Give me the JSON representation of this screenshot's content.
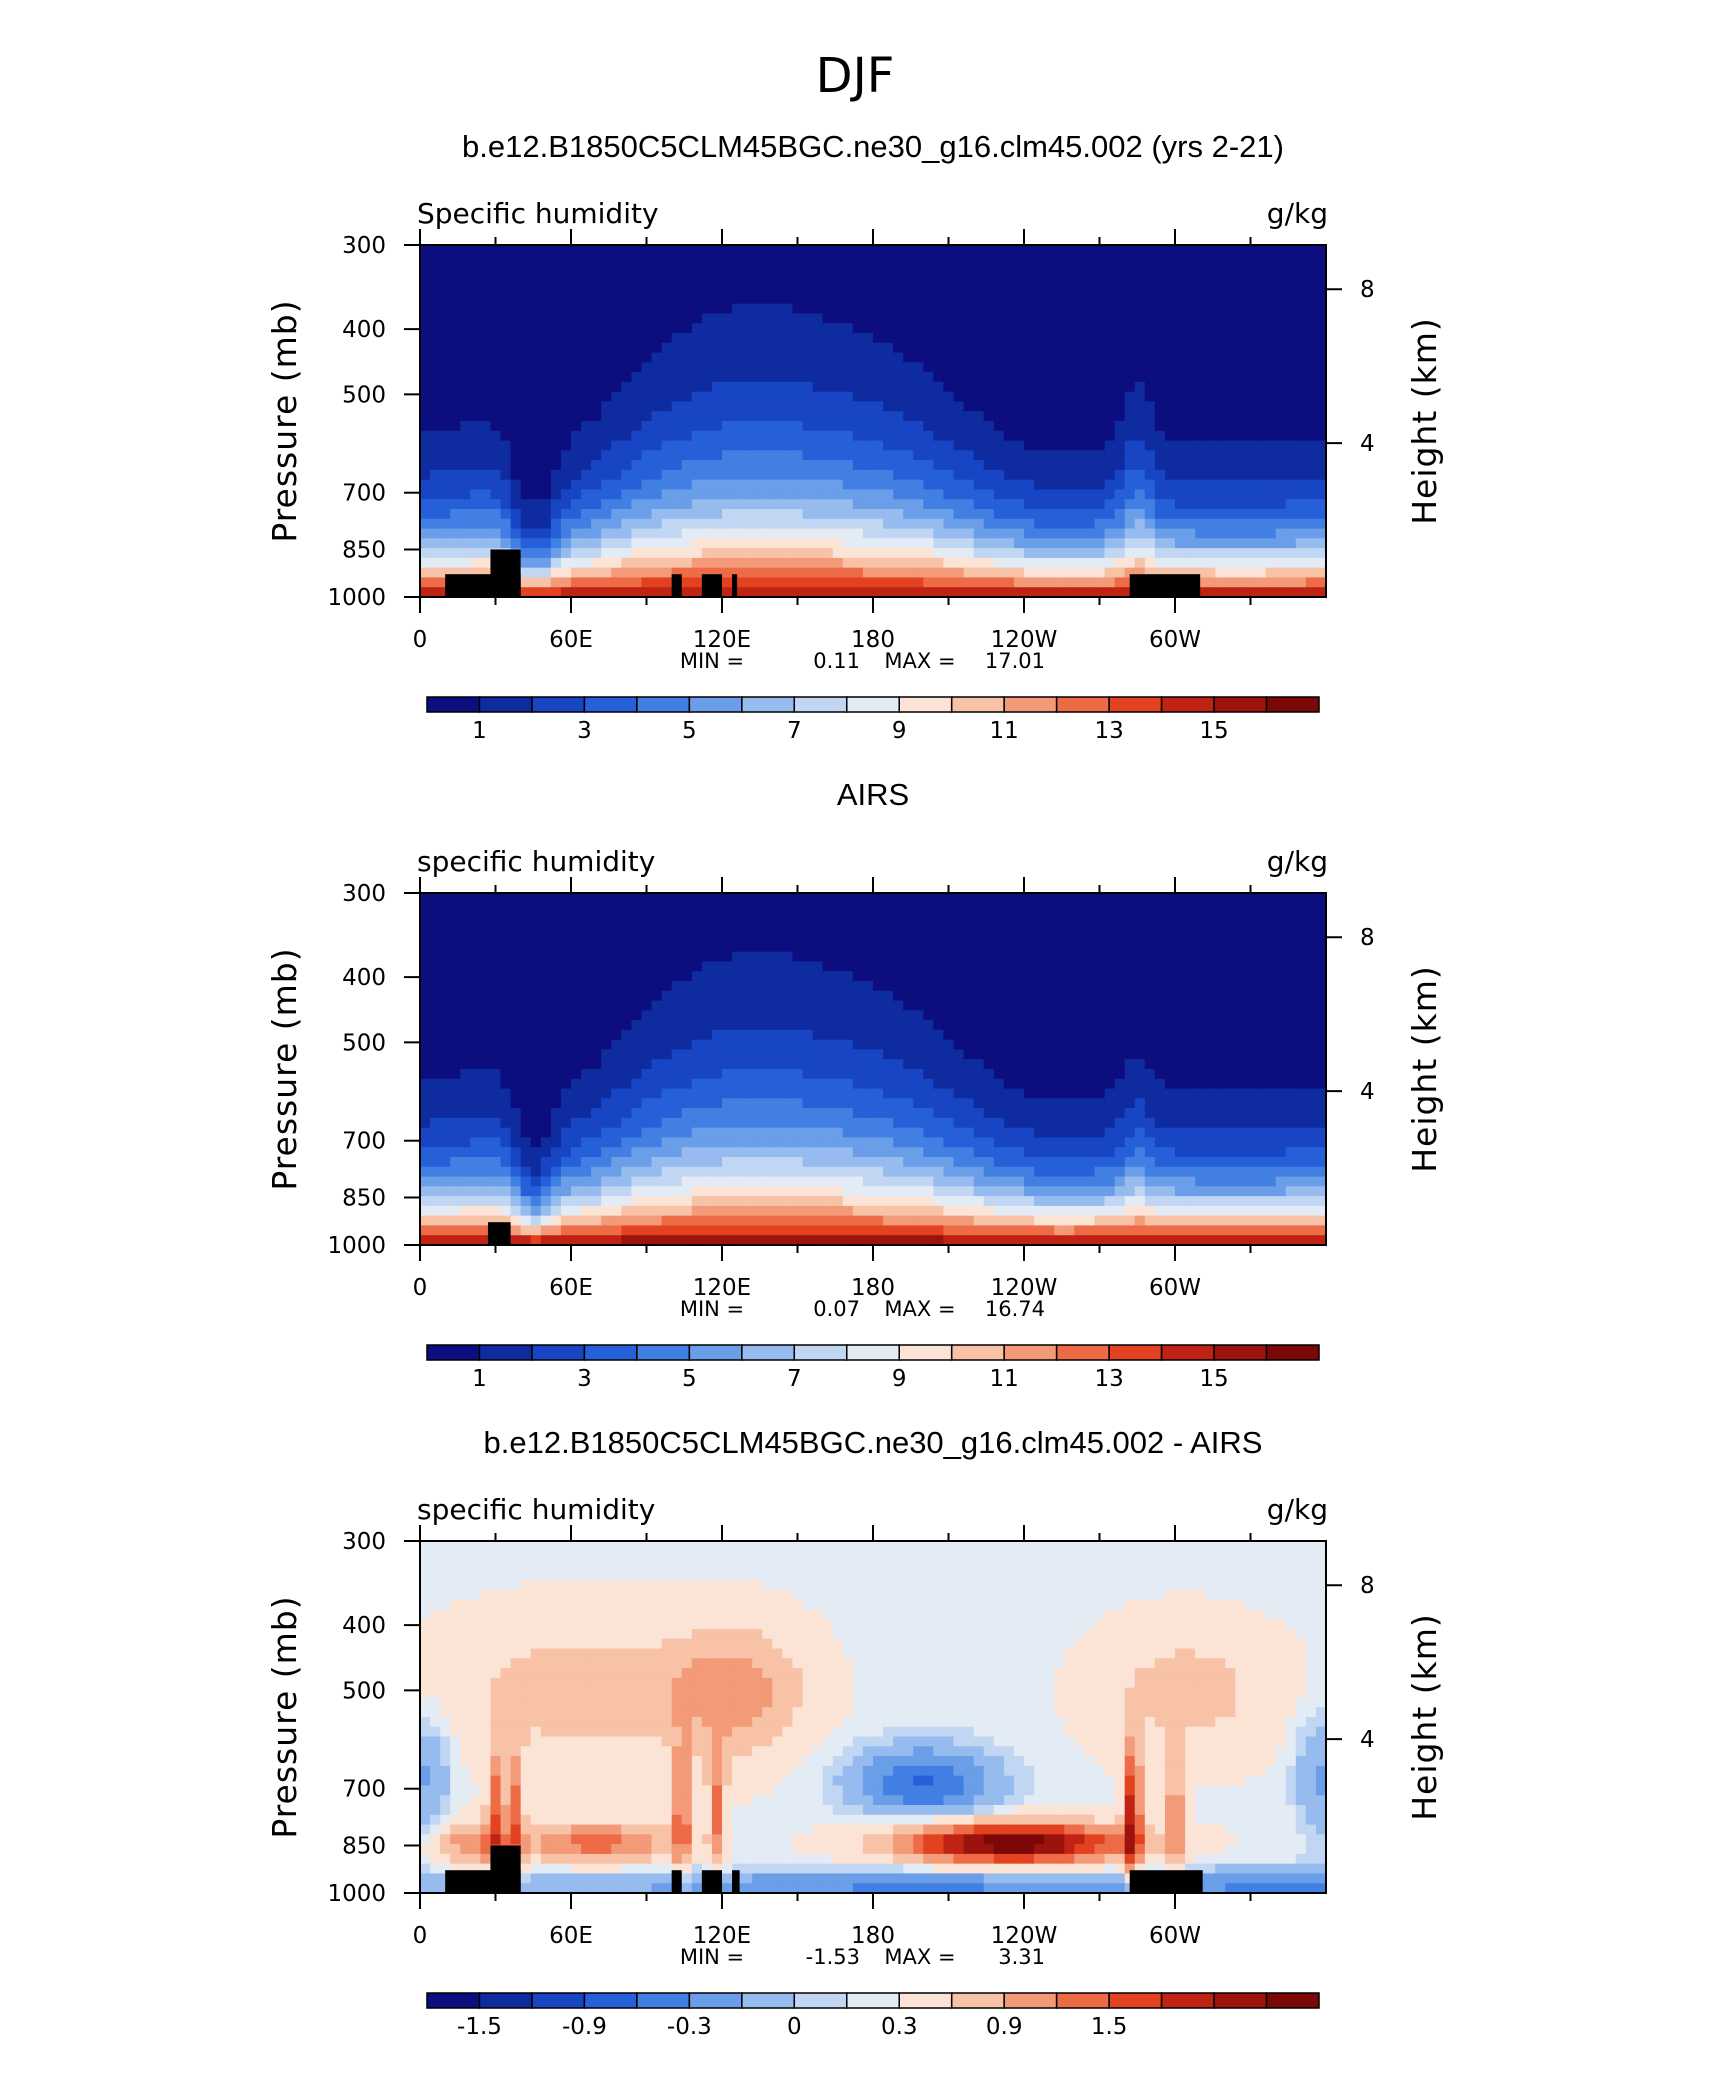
{
  "figure_title": "DJF",
  "chart_data": [
    {
      "type": "heatmap",
      "title": "b.e12.B1850C5CLM45BGC.ne30_g16.clm45.002 (yrs 2-21)",
      "left_label": "Specific humidity",
      "right_label": "g/kg",
      "ylabel": "Pressure (mb)",
      "ylabel_right": "Height (km)",
      "x_ticks": [
        "0",
        "60E",
        "120E",
        "180",
        "120W",
        "60W"
      ],
      "x_tick_values": [
        0,
        60,
        120,
        180,
        240,
        300
      ],
      "xlim": [
        0,
        360
      ],
      "y_ticks": [
        "300",
        "400",
        "500",
        "700",
        "850",
        "1000"
      ],
      "y_tick_values": [
        300,
        400,
        500,
        700,
        850,
        1000
      ],
      "ylim": [
        1000,
        300
      ],
      "y_scale": "log",
      "right_ticks": [
        "8",
        "4"
      ],
      "right_tick_values_km": [
        8,
        4
      ],
      "min_label": "MIN =",
      "min_value": "0.11",
      "max_label": "MAX =",
      "max_value": "17.01",
      "colorbar_labels": [
        "1",
        "3",
        "5",
        "7",
        "9",
        "11",
        "13",
        "15"
      ],
      "colorbar_levels": [
        0,
        1,
        2,
        3,
        4,
        5,
        6,
        7,
        8,
        9,
        10,
        11,
        12,
        13,
        14,
        15,
        16
      ],
      "field": "model",
      "topography": [
        [
          10,
          40,
          925
        ],
        [
          28,
          40,
          850
        ],
        [
          100,
          104,
          925
        ],
        [
          112,
          120,
          925
        ],
        [
          124,
          126,
          925
        ],
        [
          282,
          310,
          925
        ]
      ]
    },
    {
      "type": "heatmap",
      "title": "AIRS",
      "left_label": "specific humidity",
      "right_label": "g/kg",
      "ylabel": "Pressure (mb)",
      "ylabel_right": "Height (km)",
      "x_ticks": [
        "0",
        "60E",
        "120E",
        "180",
        "120W",
        "60W"
      ],
      "x_tick_values": [
        0,
        60,
        120,
        180,
        240,
        300
      ],
      "xlim": [
        0,
        360
      ],
      "y_ticks": [
        "300",
        "400",
        "500",
        "700",
        "850",
        "1000"
      ],
      "y_tick_values": [
        300,
        400,
        500,
        700,
        850,
        1000
      ],
      "ylim": [
        1000,
        300
      ],
      "y_scale": "log",
      "right_ticks": [
        "8",
        "4"
      ],
      "right_tick_values_km": [
        8,
        4
      ],
      "min_label": "MIN =",
      "min_value": "0.07",
      "max_label": "MAX =",
      "max_value": "16.74",
      "colorbar_labels": [
        "1",
        "3",
        "5",
        "7",
        "9",
        "11",
        "13",
        "15"
      ],
      "colorbar_levels": [
        0,
        1,
        2,
        3,
        4,
        5,
        6,
        7,
        8,
        9,
        10,
        11,
        12,
        13,
        14,
        15,
        16
      ],
      "field": "obs",
      "topography": [
        [
          27,
          36,
          925
        ]
      ]
    },
    {
      "type": "heatmap",
      "title": "b.e12.B1850C5CLM45BGC.ne30_g16.clm45.002 - AIRS",
      "left_label": "specific humidity",
      "right_label": "g/kg",
      "ylabel": "Pressure (mb)",
      "ylabel_right": "Height (km)",
      "x_ticks": [
        "0",
        "60E",
        "120E",
        "180",
        "120W",
        "60W"
      ],
      "x_tick_values": [
        0,
        60,
        120,
        180,
        240,
        300
      ],
      "xlim": [
        0,
        360
      ],
      "y_ticks": [
        "300",
        "400",
        "500",
        "700",
        "850",
        "1000"
      ],
      "y_tick_values": [
        300,
        400,
        500,
        700,
        850,
        1000
      ],
      "ylim": [
        1000,
        300
      ],
      "y_scale": "log",
      "right_ticks": [
        "8",
        "4"
      ],
      "right_tick_values_km": [
        8,
        4
      ],
      "min_label": "MIN =",
      "min_value": "-1.53",
      "max_label": "MAX =",
      "max_value": "3.31",
      "colorbar_labels": [
        "-1.5",
        "-0.9",
        "-0.3",
        "0",
        "0.3",
        "0.9",
        "1.5"
      ],
      "colorbar_levels": [
        -2.1,
        -1.8,
        -1.5,
        -1.2,
        -0.9,
        -0.6,
        -0.3,
        0,
        0.15,
        0.3,
        0.6,
        0.9,
        1.2,
        1.5,
        1.8,
        2.1,
        2.4
      ],
      "field": "diff",
      "topography": [
        [
          10,
          40,
          925
        ],
        [
          28,
          40,
          850
        ],
        [
          100,
          104,
          925
        ],
        [
          112,
          120,
          925
        ],
        [
          124,
          127,
          925
        ],
        [
          282,
          311,
          925
        ]
      ]
    }
  ],
  "palette": [
    "#0c0d7e",
    "#0f2ba0",
    "#1845c4",
    "#2560d8",
    "#4180e2",
    "#6a9ee8",
    "#96bbee",
    "#c0d6f2",
    "#e3ebf4",
    "#fbe4d6",
    "#f7c2a6",
    "#f39a78",
    "#ee6b47",
    "#e2421f",
    "#c02314",
    "#9c120c",
    "#7b0707"
  ]
}
